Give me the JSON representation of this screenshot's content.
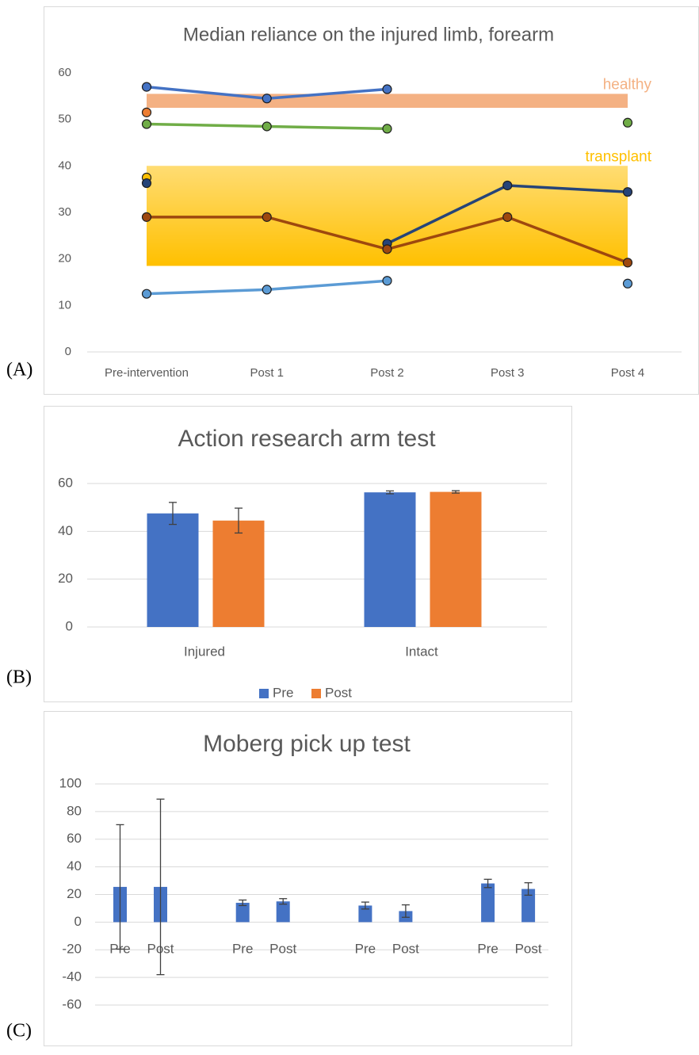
{
  "chart_data": [
    {
      "type": "line",
      "panel_label": "(A)",
      "title": "Median reliance on the injured limb, forearm",
      "categories": [
        "Pre-intervention",
        "Post 1",
        "Post 2",
        "Post 3",
        "Post 4"
      ],
      "ylim": [
        0,
        60
      ],
      "yticks": [
        0,
        10,
        20,
        30,
        40,
        50,
        60
      ],
      "grid": false,
      "bands": [
        {
          "name": "healthy",
          "range": [
            52.5,
            55.5
          ],
          "color": "#f4b183"
        },
        {
          "name": "transplant",
          "range": [
            18.5,
            40
          ],
          "color": "#ffc000"
        }
      ],
      "series": [
        {
          "color": "#4472c4",
          "values": [
            57,
            54.5,
            56.5,
            null,
            null
          ]
        },
        {
          "color": "#70ad47",
          "values": [
            49,
            48.5,
            48,
            null,
            49.3
          ]
        },
        {
          "color": "#ed7d31",
          "values": [
            51.5,
            null,
            null,
            null,
            null
          ]
        },
        {
          "color": "#ffc000",
          "values": [
            37.5,
            null,
            null,
            null,
            null
          ]
        },
        {
          "color": "#264478",
          "values": [
            36.3,
            null,
            23.3,
            35.8,
            34.4
          ]
        },
        {
          "color": "#9e480e",
          "values": [
            29,
            29,
            22.1,
            29,
            19.2
          ]
        },
        {
          "color": "#5b9bd5",
          "values": [
            12.5,
            13.4,
            15.3,
            null,
            14.7
          ]
        }
      ]
    },
    {
      "type": "bar",
      "panel_label": "(B)",
      "title": "Action research arm test",
      "categories": [
        "Injured",
        "Intact"
      ],
      "ylim": [
        0,
        60
      ],
      "yticks": [
        0,
        20,
        40,
        60
      ],
      "grid": true,
      "legend": "bottom",
      "series": [
        {
          "name": "Pre",
          "color": "#4472c4",
          "values": [
            47.5,
            56.3
          ],
          "errors": [
            4.6,
            0.6
          ]
        },
        {
          "name": "Post",
          "color": "#ed7d31",
          "values": [
            44.5,
            56.5
          ],
          "errors": [
            5.2,
            0.5
          ]
        }
      ]
    },
    {
      "type": "bar",
      "panel_label": "(C)",
      "title": "Moberg pick up test",
      "categories": [
        "Pre",
        "Post",
        "Pre",
        "Post",
        "Pre",
        "Post",
        "Pre",
        "Post"
      ],
      "ylim": [
        -60,
        100
      ],
      "yticks": [
        -60,
        -40,
        -20,
        0,
        20,
        40,
        60,
        80,
        100
      ],
      "grid": true,
      "color": "#4472c4",
      "values": [
        25.5,
        25.5,
        14,
        15,
        12,
        8,
        28,
        24
      ],
      "errors": [
        45,
        63.5,
        2,
        2,
        2.5,
        4.5,
        3,
        4.5
      ]
    }
  ]
}
